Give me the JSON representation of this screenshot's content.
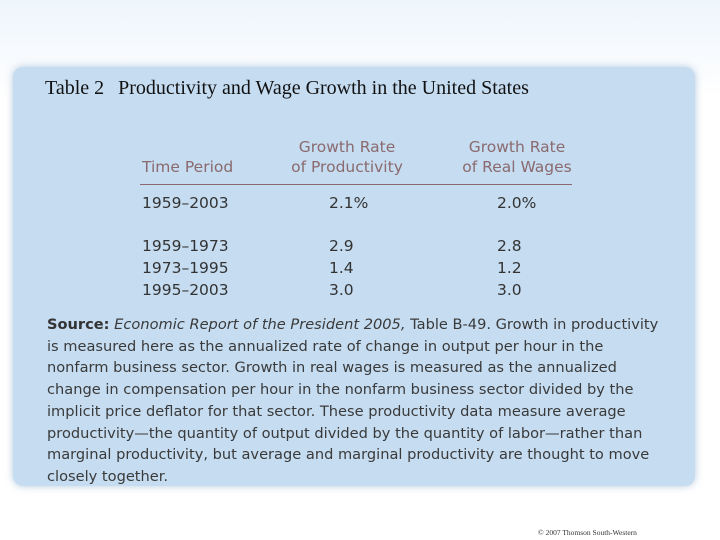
{
  "title": {
    "number": "Table 2",
    "text": "Productivity and Wage Growth in the United States"
  },
  "table": {
    "headers": {
      "period": "Time Period",
      "productivity_line1": "Growth Rate",
      "productivity_line2": "of Productivity",
      "wages_line1": "Growth Rate",
      "wages_line2": "of Real Wages"
    },
    "rows": [
      {
        "period": "1959–2003",
        "productivity": "2.1%",
        "wages": "2.0%"
      },
      {
        "period": "1959–1973",
        "productivity": "2.9",
        "wages": "2.8"
      },
      {
        "period": "1973–1995",
        "productivity": "1.4",
        "wages": "1.2"
      },
      {
        "period": "1995–2003",
        "productivity": "3.0",
        "wages": "3.0"
      }
    ]
  },
  "source": {
    "label": "Source:",
    "publication": "Economic Report of the President 2005,",
    "text": "Table B-49. Growth in productivity is measured here as the annualized rate of change in output per hour in the nonfarm business sector. Growth in real wages is measured as the annualized change in compensation per hour in the nonfarm business sector divided by the implicit price deflator for that sector. These productivity data measure average productivity—the quantity of output divided by the quantity of labor—rather than marginal productivity, but average and marginal productivity are thought to move closely together."
  },
  "footer": {
    "copyright": "© 2007 Thomson South-Western"
  }
}
